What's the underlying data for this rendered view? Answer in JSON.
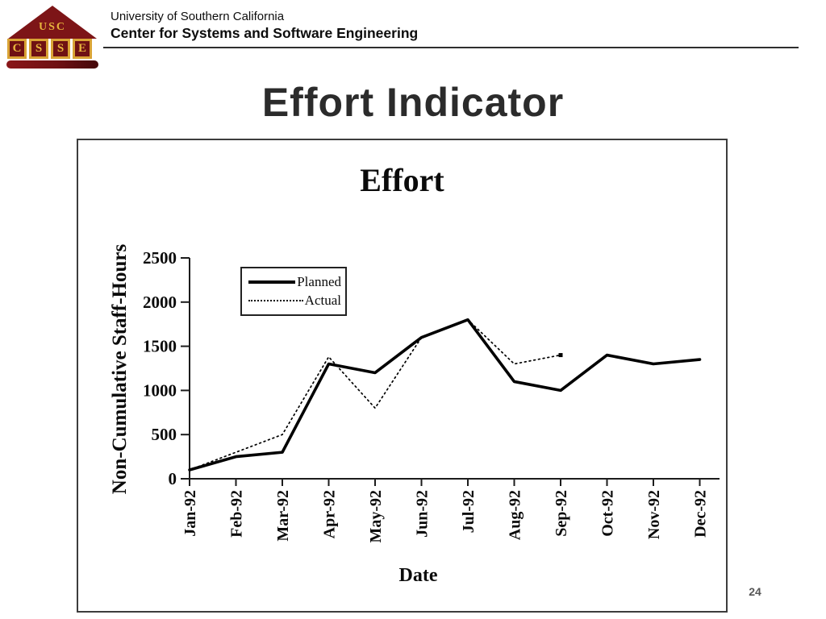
{
  "header": {
    "org": "University of Southern California",
    "dept": "Center for Systems and Software Engineering",
    "logo": {
      "roof_text": "USC",
      "letters": [
        "C",
        "S",
        "S",
        "E"
      ],
      "maroon": "#7d1517",
      "gold": "#e7b43c"
    }
  },
  "slide": {
    "title": "Effort Indicator",
    "page_number": "24"
  },
  "chart_data": {
    "type": "line",
    "title": "Effort",
    "xlabel": "Date",
    "ylabel": "Non-Cumulative Staff-Hours",
    "ylim": [
      0,
      2500
    ],
    "yticks": [
      0,
      500,
      1000,
      1500,
      2000,
      2500
    ],
    "grid": false,
    "legend_position": "upper-left inside plot",
    "categories": [
      "Jan-92",
      "Feb-92",
      "Mar-92",
      "Apr-92",
      "May-92",
      "Jun-92",
      "Jul-92",
      "Aug-92",
      "Sep-92",
      "Oct-92",
      "Nov-92",
      "Dec-92"
    ],
    "series": [
      {
        "name": "Planned",
        "line_style": "solid",
        "color": "#000000",
        "values": [
          100,
          250,
          300,
          1300,
          1200,
          1600,
          1800,
          1100,
          1000,
          1400,
          1300,
          1350
        ]
      },
      {
        "name": "Actual",
        "line_style": "dotted",
        "color": "#000000",
        "values": [
          100,
          300,
          500,
          1380,
          800,
          1600,
          1800,
          1300,
          1400
        ]
      }
    ]
  }
}
